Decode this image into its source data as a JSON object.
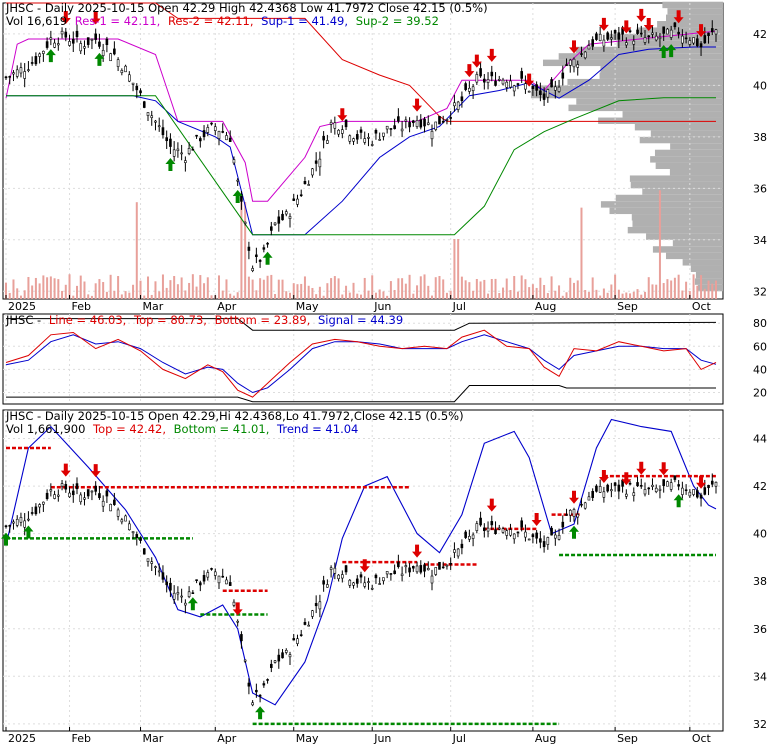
{
  "panel1": {
    "title": "JHSC - Daily 2025-10-15 Open 42.29  High 42.4368  Low 41.7972  Close 42.15 (0.5%)",
    "vol_label": "Vol 16,619",
    "res1_label": "Res-1 = 42.11,",
    "res2_label": "Res-2 = 42.11,",
    "sup1_label": "Sup-1 = 41.49,",
    "sup2_label": "Sup-2 = 39.52"
  },
  "panel2": {
    "title_prefix": "JHSC -",
    "line_label": "Line = 46.03,",
    "top_label": "Top = 80.73,",
    "bottom_label": "Bottom = 23.89,",
    "signal_label": "Signal = 44.39"
  },
  "panel3": {
    "title": "JHSC - Daily 2025-10-15 Open 42.29,Hi 42.4368,Lo 41.7972,Close 42.15 (0.5%)",
    "vol_label": "Vol 1,661,900",
    "top_label": "Top = 42.42,",
    "bottom_label": "Bottom = 41.01,",
    "trend_label": "Trend = 41.04"
  },
  "colors": {
    "res1": "#cc00cc",
    "res2": "#dd0000",
    "sup1": "#0000cc",
    "sup2": "#008800",
    "up_arrow": "#008800",
    "down_arrow": "#dd0000",
    "volume": "#e8a09a",
    "profile": "#b0b0b0"
  },
  "chart_data": [
    {
      "type": "candlestick",
      "title": "JHSC - Daily 2025-10-15 Open 42.29  High 42.4368  Low 41.7972  Close 42.15 (0.5%)",
      "ylim": [
        31.7,
        43.2
      ],
      "yticks": [
        32,
        34,
        36,
        38,
        40,
        42
      ],
      "x_tick_labels": [
        "2025",
        "Feb",
        "Mar",
        "Apr",
        "May",
        "Jun",
        "Jul",
        "Aug",
        "Sep",
        "Oct"
      ],
      "close_path": [
        [
          0,
          40.3
        ],
        [
          4,
          40.6
        ],
        [
          8,
          41.0
        ],
        [
          12,
          41.8
        ],
        [
          16,
          41.9
        ],
        [
          20,
          41.6
        ],
        [
          24,
          41.8
        ],
        [
          28,
          41.4
        ],
        [
          32,
          40.6
        ],
        [
          36,
          39.6
        ],
        [
          40,
          38.6
        ],
        [
          44,
          37.6
        ],
        [
          48,
          37.3
        ],
        [
          52,
          38.0
        ],
        [
          56,
          38.4
        ],
        [
          60,
          38.0
        ],
        [
          63,
          35.3
        ],
        [
          66,
          33.0
        ],
        [
          69,
          33.4
        ],
        [
          72,
          34.6
        ],
        [
          75,
          34.9
        ],
        [
          78,
          35.6
        ],
        [
          81,
          36.4
        ],
        [
          84,
          37.3
        ],
        [
          87,
          38.5
        ],
        [
          90,
          38.5
        ],
        [
          94,
          38.0
        ],
        [
          98,
          37.9
        ],
        [
          102,
          38.3
        ],
        [
          106,
          38.4
        ],
        [
          110,
          38.7
        ],
        [
          114,
          38.4
        ],
        [
          118,
          38.8
        ],
        [
          122,
          39.4
        ],
        [
          126,
          40.2
        ],
        [
          130,
          40.2
        ],
        [
          134,
          40.3
        ],
        [
          138,
          40.1
        ],
        [
          141,
          39.8
        ],
        [
          144,
          39.5
        ],
        [
          147,
          39.8
        ],
        [
          150,
          40.8
        ],
        [
          153,
          41.0
        ],
        [
          156,
          41.6
        ],
        [
          160,
          41.8
        ],
        [
          164,
          41.9
        ],
        [
          168,
          41.9
        ],
        [
          172,
          41.8
        ],
        [
          176,
          41.9
        ],
        [
          180,
          42.1
        ],
        [
          184,
          41.8
        ],
        [
          186,
          41.5
        ],
        [
          190,
          42.15
        ]
      ],
      "res1": 42.11,
      "res2": 42.11,
      "sup1": 41.49,
      "sup2": 39.52,
      "volume_last": 16619
    },
    {
      "type": "line",
      "title_prefix": "JHSC -",
      "ylim": [
        10,
        88
      ],
      "yticks": [
        20,
        40,
        60,
        80
      ],
      "series": [
        {
          "name": "Line",
          "points": [
            [
              0,
              46
            ],
            [
              6,
              52
            ],
            [
              12,
              70
            ],
            [
              18,
              72
            ],
            [
              24,
              58
            ],
            [
              30,
              66
            ],
            [
              36,
              56
            ],
            [
              42,
              40
            ],
            [
              48,
              32
            ],
            [
              54,
              44
            ],
            [
              58,
              38
            ],
            [
              62,
              22
            ],
            [
              66,
              16
            ],
            [
              70,
              28
            ],
            [
              76,
              46
            ],
            [
              82,
              62
            ],
            [
              88,
              66
            ],
            [
              94,
              64
            ],
            [
              100,
              60
            ],
            [
              106,
              58
            ],
            [
              112,
              60
            ],
            [
              118,
              58
            ],
            [
              122,
              68
            ],
            [
              128,
              74
            ],
            [
              134,
              60
            ],
            [
              140,
              58
            ],
            [
              144,
              42
            ],
            [
              148,
              34
            ],
            [
              152,
              58
            ],
            [
              158,
              56
            ],
            [
              164,
              64
            ],
            [
              170,
              60
            ],
            [
              176,
              56
            ],
            [
              182,
              58
            ],
            [
              186,
              40
            ],
            [
              190,
              46.03
            ]
          ]
        },
        {
          "name": "Signal",
          "points": [
            [
              0,
              44
            ],
            [
              6,
              48
            ],
            [
              12,
              64
            ],
            [
              18,
              70
            ],
            [
              24,
              62
            ],
            [
              30,
              64
            ],
            [
              36,
              58
            ],
            [
              42,
              46
            ],
            [
              48,
              36
            ],
            [
              54,
              42
            ],
            [
              58,
              40
            ],
            [
              62,
              28
            ],
            [
              66,
              20
            ],
            [
              70,
              24
            ],
            [
              76,
              40
            ],
            [
              82,
              58
            ],
            [
              88,
              64
            ],
            [
              94,
              64
            ],
            [
              100,
              62
            ],
            [
              106,
              58
            ],
            [
              112,
              58
            ],
            [
              118,
              58
            ],
            [
              122,
              64
            ],
            [
              128,
              70
            ],
            [
              134,
              64
            ],
            [
              140,
              58
            ],
            [
              144,
              48
            ],
            [
              148,
              40
            ],
            [
              152,
              52
            ],
            [
              158,
              56
            ],
            [
              164,
              60
            ],
            [
              170,
              60
            ],
            [
              176,
              58
            ],
            [
              182,
              58
            ],
            [
              186,
              48
            ],
            [
              190,
              44.39
            ]
          ]
        }
      ],
      "top": 80.73,
      "bottom": 23.89
    },
    {
      "type": "candlestick",
      "title": "JHSC - Daily 2025-10-15 Open 42.29,Hi 42.4368,Lo 41.7972,Close 42.15 (0.5%)",
      "ylim": [
        31.7,
        45.2
      ],
      "yticks": [
        32,
        34,
        36,
        38,
        40,
        42,
        44
      ],
      "x_tick_labels": [
        "2025",
        "Feb",
        "Mar",
        "Apr",
        "May",
        "Jun",
        "Jul",
        "Aug",
        "Sep",
        "Oct"
      ],
      "top": 42.42,
      "bottom": 41.01,
      "trend": 41.04,
      "volume": 1661900
    }
  ]
}
